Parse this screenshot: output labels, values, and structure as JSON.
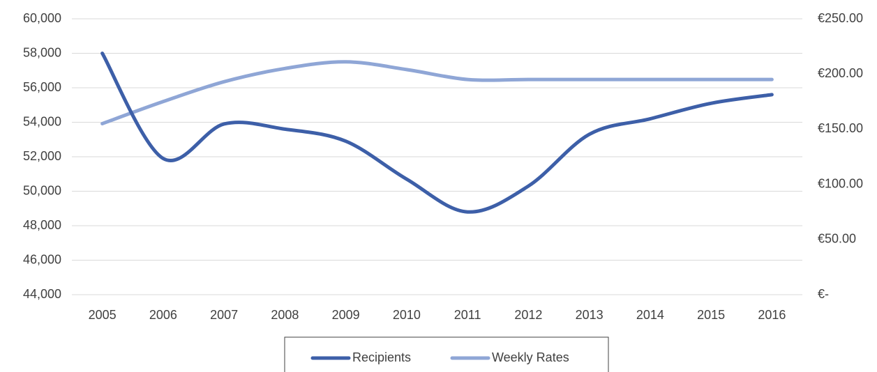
{
  "chart_data": {
    "type": "line",
    "categories": [
      "2005",
      "2006",
      "2007",
      "2008",
      "2009",
      "2010",
      "2011",
      "2012",
      "2013",
      "2014",
      "2015",
      "2016"
    ],
    "series": [
      {
        "name": "Recipients",
        "color": "#3d5fa8",
        "values": [
          58000,
          51900,
          53900,
          53600,
          52900,
          50700,
          48800,
          50300,
          53300,
          54200,
          55100,
          55600
        ]
      },
      {
        "name": "Weekly Rates",
        "color": "#8fa6d6",
        "axis": "y2",
        "values": [
          155,
          175,
          193,
          205,
          211,
          204,
          195,
          195,
          195,
          195,
          195,
          195
        ]
      }
    ],
    "ylim": [
      44000,
      60000
    ],
    "yticks": [
      {
        "value": 44000,
        "label": "44,000"
      },
      {
        "value": 46000,
        "label": "46,000"
      },
      {
        "value": 48000,
        "label": "48,000"
      },
      {
        "value": 50000,
        "label": "50,000"
      },
      {
        "value": 52000,
        "label": "52,000"
      },
      {
        "value": 54000,
        "label": "54,000"
      },
      {
        "value": 56000,
        "label": "56,000"
      },
      {
        "value": 58000,
        "label": "58,000"
      },
      {
        "value": 60000,
        "label": "60,000"
      }
    ],
    "y2lim": [
      0,
      250
    ],
    "y2ticks": [
      {
        "value": 0,
        "label": "€-"
      },
      {
        "value": 50,
        "label": "€50.00"
      },
      {
        "value": 100,
        "label": "€100.00"
      },
      {
        "value": 150,
        "label": "€150.00"
      },
      {
        "value": 200,
        "label": "€200.00"
      },
      {
        "value": 250,
        "label": "€250.00"
      }
    ],
    "grid": true,
    "legend": "bottom"
  }
}
